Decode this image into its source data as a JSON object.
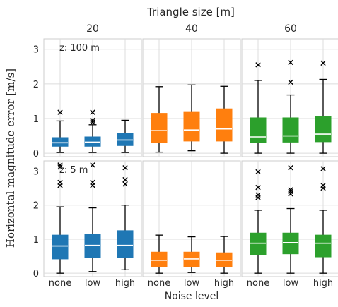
{
  "chart_data": {
    "type": "box",
    "title": "Triangle size [m]",
    "xlabel": "Noise level",
    "ylabel": "Horizontal magnitude error [m/s]",
    "col_labels": [
      "20",
      "40",
      "60"
    ],
    "row_labels": [
      "z: 100 m",
      "z: 5 m"
    ],
    "categories": [
      "none",
      "low",
      "high"
    ],
    "ylim": [
      -0.1,
      3.3
    ],
    "yticks": [
      0,
      1,
      2,
      3
    ],
    "colors": {
      "20": "#1f77b4",
      "40": "#ff7f0e",
      "60": "#2ca02c"
    },
    "panels": [
      {
        "row": "z: 100 m",
        "col": "20",
        "boxes": [
          {
            "category": "none",
            "whislo": 0.02,
            "q1": 0.2,
            "med": 0.3,
            "q3": 0.45,
            "whishi": 0.93,
            "fliers": [
              1.18
            ]
          },
          {
            "category": "low",
            "whislo": 0.02,
            "q1": 0.2,
            "med": 0.32,
            "q3": 0.47,
            "whishi": 0.82,
            "fliers": [
              0.9,
              0.95,
              1.18
            ]
          },
          {
            "category": "high",
            "whislo": 0.02,
            "q1": 0.22,
            "med": 0.38,
            "q3": 0.58,
            "whishi": 0.95,
            "fliers": []
          }
        ]
      },
      {
        "row": "z: 100 m",
        "col": "40",
        "boxes": [
          {
            "category": "none",
            "whislo": 0.03,
            "q1": 0.3,
            "med": 0.65,
            "q3": 1.15,
            "whishi": 1.92,
            "fliers": []
          },
          {
            "category": "low",
            "whislo": 0.07,
            "q1": 0.35,
            "med": 0.67,
            "q3": 1.2,
            "whishi": 1.97,
            "fliers": []
          },
          {
            "category": "high",
            "whislo": 0.0,
            "q1": 0.35,
            "med": 0.7,
            "q3": 1.28,
            "whishi": 1.93,
            "fliers": []
          }
        ]
      },
      {
        "row": "z: 100 m",
        "col": "60",
        "boxes": [
          {
            "category": "none",
            "whislo": 0.0,
            "q1": 0.3,
            "med": 0.47,
            "q3": 1.02,
            "whishi": 2.1,
            "fliers": [
              2.55
            ]
          },
          {
            "category": "low",
            "whislo": 0.0,
            "q1": 0.32,
            "med": 0.5,
            "q3": 1.02,
            "whishi": 1.68,
            "fliers": [
              2.05,
              2.62
            ]
          },
          {
            "category": "high",
            "whislo": 0.0,
            "q1": 0.33,
            "med": 0.55,
            "q3": 1.05,
            "whishi": 2.13,
            "fliers": [
              2.6
            ]
          }
        ]
      },
      {
        "row": "z: 5 m",
        "col": "20",
        "boxes": [
          {
            "category": "none",
            "whislo": 0.0,
            "q1": 0.42,
            "med": 0.8,
            "q3": 1.12,
            "whishi": 1.95,
            "fliers": [
              2.58,
              2.67,
              3.12,
              3.18
            ]
          },
          {
            "category": "low",
            "whislo": 0.05,
            "q1": 0.45,
            "med": 0.82,
            "q3": 1.15,
            "whishi": 1.92,
            "fliers": [
              2.58,
              2.67,
              3.18
            ]
          },
          {
            "category": "high",
            "whislo": 0.1,
            "q1": 0.45,
            "med": 0.82,
            "q3": 1.25,
            "whishi": 2.0,
            "fliers": [
              2.62,
              2.75,
              3.1
            ]
          }
        ]
      },
      {
        "row": "z: 5 m",
        "col": "40",
        "boxes": [
          {
            "category": "none",
            "whislo": 0.0,
            "q1": 0.18,
            "med": 0.38,
            "q3": 0.62,
            "whishi": 1.12,
            "fliers": []
          },
          {
            "category": "low",
            "whislo": 0.02,
            "q1": 0.2,
            "med": 0.42,
            "q3": 0.62,
            "whishi": 1.07,
            "fliers": []
          },
          {
            "category": "high",
            "whislo": 0.0,
            "q1": 0.2,
            "med": 0.38,
            "q3": 0.6,
            "whishi": 1.08,
            "fliers": []
          }
        ]
      },
      {
        "row": "z: 5 m",
        "col": "60",
        "boxes": [
          {
            "category": "none",
            "whislo": 0.0,
            "q1": 0.55,
            "med": 0.88,
            "q3": 1.18,
            "whishi": 1.85,
            "fliers": [
              2.22,
              2.3,
              2.52,
              2.98
            ]
          },
          {
            "category": "low",
            "whislo": 0.0,
            "q1": 0.57,
            "med": 0.9,
            "q3": 1.18,
            "whishi": 1.9,
            "fliers": [
              2.33,
              2.4,
              2.45,
              3.1
            ]
          },
          {
            "category": "high",
            "whislo": 0.0,
            "q1": 0.48,
            "med": 0.88,
            "q3": 1.12,
            "whishi": 1.85,
            "fliers": [
              2.5,
              2.58,
              3.07
            ]
          }
        ]
      }
    ]
  }
}
